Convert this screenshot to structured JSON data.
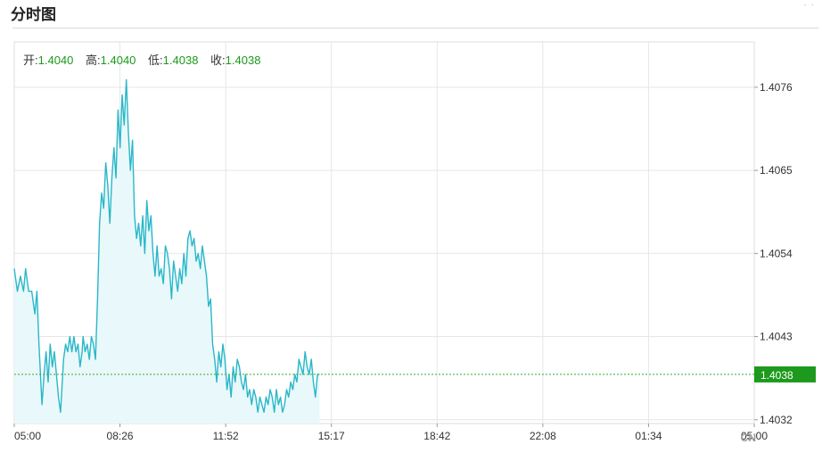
{
  "page": {
    "title": "分时图"
  },
  "ohlc": [
    {
      "label": "开:",
      "value": "1.4040"
    },
    {
      "label": "高:",
      "value": "1.4040"
    },
    {
      "label": "低:",
      "value": "1.4038"
    },
    {
      "label": "收:",
      "value": "1.4038"
    }
  ],
  "watermark": "CN",
  "colors": {
    "line": "#29b7c9",
    "area": "#e9f8fa",
    "grid": "#e6e6e6",
    "current_price_line": "#33aa33",
    "current_price_tag": "#1d9a1d",
    "ohlc_value": "#1a9a1a"
  },
  "chart_data": {
    "type": "area",
    "x_tick_labels": [
      "05:00",
      "08:26",
      "11:52",
      "15:17",
      "18:42",
      "22:08",
      "01:34",
      "05:00"
    ],
    "y_ticks": [
      1.4076,
      1.4065,
      1.4054,
      1.4043,
      1.4032
    ],
    "y_tick_labels": [
      "1.4076",
      "1.4065",
      "1.4054",
      "1.4043",
      "1.4032"
    ],
    "ylim": [
      1.40315,
      1.4082
    ],
    "x_count": 1440,
    "current_price": 1.4038,
    "current_price_label": "1.4038",
    "grid": true,
    "series": [
      {
        "x": [
          0,
          6,
          12,
          18,
          22,
          28,
          34,
          40,
          44,
          48,
          54,
          58,
          62,
          66,
          70,
          74,
          78,
          82,
          86,
          90,
          96,
          100,
          104,
          108,
          112,
          116,
          120,
          124,
          128,
          132,
          134,
          138,
          142,
          146,
          150,
          154,
          158,
          162,
          166,
          170,
          174,
          178,
          182,
          186,
          190,
          194,
          198,
          202,
          206,
          210,
          214,
          218,
          222,
          226,
          230,
          234,
          238,
          242,
          246,
          250,
          254,
          258,
          262,
          266,
          270,
          274,
          278,
          282,
          286,
          290,
          294,
          298,
          302,
          306,
          310,
          314,
          318,
          322,
          326,
          330,
          334,
          338,
          342,
          346,
          350,
          354,
          358,
          362,
          366,
          370,
          374,
          378,
          382,
          386,
          390,
          394,
          398,
          402,
          406,
          410,
          414,
          418,
          422,
          426,
          430,
          434,
          438,
          442,
          446,
          450,
          454,
          458,
          462,
          466,
          470,
          474,
          478,
          482,
          486,
          490,
          494,
          498,
          502,
          506,
          510,
          514,
          518,
          522,
          526,
          530,
          534,
          538,
          542,
          546,
          550,
          554,
          558,
          562,
          566,
          570,
          574,
          578,
          582,
          586,
          590,
          594
        ],
        "values": [
          1.4052,
          1.4049,
          1.4051,
          1.4049,
          1.4052,
          1.4049,
          1.4049,
          1.4046,
          1.4049,
          1.4042,
          1.4034,
          1.4038,
          1.4041,
          1.4037,
          1.4042,
          1.4039,
          1.4041,
          1.4038,
          1.4035,
          1.4033,
          1.404,
          1.4042,
          1.4041,
          1.4043,
          1.4041,
          1.4043,
          1.4041,
          1.4042,
          1.4039,
          1.4041,
          1.4043,
          1.4041,
          1.4042,
          1.404,
          1.4043,
          1.4042,
          1.404,
          1.4048,
          1.4058,
          1.4062,
          1.406,
          1.4066,
          1.4063,
          1.4058,
          1.4064,
          1.4068,
          1.4064,
          1.4073,
          1.4068,
          1.4075,
          1.4071,
          1.4077,
          1.407,
          1.4065,
          1.4069,
          1.4059,
          1.4056,
          1.4058,
          1.4055,
          1.4059,
          1.4054,
          1.4061,
          1.4057,
          1.4059,
          1.4054,
          1.4051,
          1.4055,
          1.4051,
          1.4052,
          1.405,
          1.4055,
          1.4054,
          1.4052,
          1.4048,
          1.4053,
          1.4051,
          1.4049,
          1.4052,
          1.405,
          1.4054,
          1.4051,
          1.4056,
          1.4057,
          1.4055,
          1.4056,
          1.4053,
          1.4054,
          1.4052,
          1.4055,
          1.4053,
          1.4051,
          1.4047,
          1.4048,
          1.4042,
          1.404,
          1.4037,
          1.4041,
          1.4039,
          1.4042,
          1.404,
          1.4036,
          1.4038,
          1.4035,
          1.4039,
          1.4037,
          1.404,
          1.4039,
          1.4037,
          1.4036,
          1.4038,
          1.4035,
          1.4036,
          1.4034,
          1.4036,
          1.4035,
          1.4033,
          1.4035,
          1.4034,
          1.4033,
          1.4035,
          1.4034,
          1.4036,
          1.4035,
          1.4033,
          1.4036,
          1.4034,
          1.4035,
          1.4033,
          1.4034,
          1.4036,
          1.4035,
          1.4037,
          1.4036,
          1.4038,
          1.4037,
          1.404,
          1.4039,
          1.4038,
          1.4041,
          1.4039,
          1.4038,
          1.404,
          1.4037,
          1.4035,
          1.4038,
          1.4038
        ]
      }
    ]
  }
}
